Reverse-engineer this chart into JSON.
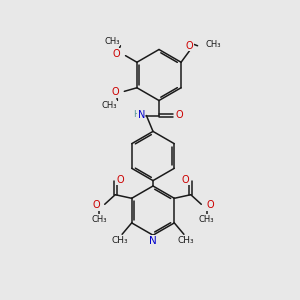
{
  "bg_color": "#e8e8e8",
  "bond_color": "#1a1a1a",
  "o_color": "#cc0000",
  "n_color": "#0000cc",
  "h_color": "#5a9a9a",
  "font_size": 7.0,
  "bond_width": 1.1,
  "figsize": [
    3.0,
    3.0
  ],
  "dpi": 100,
  "xlim": [
    0,
    10
  ],
  "ylim": [
    0,
    10
  ]
}
